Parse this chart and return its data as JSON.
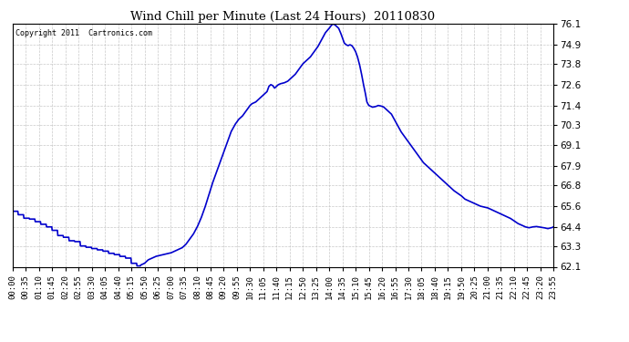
{
  "title": "Wind Chill per Minute (Last 24 Hours)  20110830",
  "copyright_text": "Copyright 2011  Cartronics.com",
  "line_color": "#0000cc",
  "background_color": "#ffffff",
  "grid_color": "#bbbbbb",
  "yticks": [
    62.1,
    63.3,
    64.4,
    65.6,
    66.8,
    67.9,
    69.1,
    70.3,
    71.4,
    72.6,
    73.8,
    74.9,
    76.1
  ],
  "ylim": [
    62.1,
    76.1
  ],
  "xtick_labels": [
    "00:00",
    "00:35",
    "01:10",
    "01:45",
    "02:20",
    "02:55",
    "03:30",
    "04:05",
    "04:40",
    "05:15",
    "05:50",
    "06:25",
    "07:00",
    "07:35",
    "08:10",
    "08:45",
    "09:20",
    "09:55",
    "10:30",
    "11:05",
    "11:40",
    "12:15",
    "12:50",
    "13:25",
    "14:00",
    "14:35",
    "15:10",
    "15:45",
    "16:20",
    "16:55",
    "17:30",
    "18:05",
    "18:40",
    "19:15",
    "19:50",
    "20:25",
    "21:00",
    "21:35",
    "22:10",
    "22:45",
    "23:20",
    "23:55"
  ],
  "control_points": [
    [
      0,
      65.3
    ],
    [
      15,
      65.1
    ],
    [
      30,
      64.9
    ],
    [
      45,
      64.85
    ],
    [
      60,
      64.7
    ],
    [
      75,
      64.55
    ],
    [
      90,
      64.4
    ],
    [
      105,
      64.2
    ],
    [
      110,
      64.1
    ],
    [
      120,
      63.9
    ],
    [
      135,
      63.8
    ],
    [
      140,
      63.75
    ],
    [
      150,
      63.6
    ],
    [
      155,
      63.65
    ],
    [
      165,
      63.55
    ],
    [
      170,
      63.5
    ],
    [
      175,
      63.35
    ],
    [
      180,
      63.3
    ],
    [
      190,
      63.25
    ],
    [
      200,
      63.2
    ],
    [
      210,
      63.15
    ],
    [
      220,
      63.1
    ],
    [
      230,
      63.05
    ],
    [
      240,
      63.0
    ],
    [
      245,
      62.95
    ],
    [
      250,
      62.9
    ],
    [
      260,
      62.85
    ],
    [
      270,
      62.8
    ],
    [
      280,
      62.75
    ],
    [
      290,
      62.65
    ],
    [
      300,
      62.6
    ],
    [
      305,
      62.55
    ],
    [
      310,
      62.5
    ],
    [
      315,
      62.3
    ],
    [
      320,
      62.25
    ],
    [
      325,
      62.2
    ],
    [
      330,
      62.15
    ],
    [
      335,
      62.13
    ],
    [
      340,
      62.2
    ],
    [
      345,
      62.25
    ],
    [
      350,
      62.3
    ],
    [
      355,
      62.4
    ],
    [
      360,
      62.5
    ],
    [
      365,
      62.55
    ],
    [
      370,
      62.6
    ],
    [
      375,
      62.65
    ],
    [
      380,
      62.7
    ],
    [
      390,
      62.75
    ],
    [
      400,
      62.8
    ],
    [
      410,
      62.85
    ],
    [
      420,
      62.9
    ],
    [
      430,
      63.0
    ],
    [
      440,
      63.1
    ],
    [
      450,
      63.2
    ],
    [
      460,
      63.4
    ],
    [
      470,
      63.7
    ],
    [
      480,
      64.0
    ],
    [
      490,
      64.4
    ],
    [
      500,
      64.9
    ],
    [
      510,
      65.5
    ],
    [
      520,
      66.2
    ],
    [
      530,
      66.9
    ],
    [
      540,
      67.5
    ],
    [
      550,
      68.1
    ],
    [
      560,
      68.7
    ],
    [
      570,
      69.3
    ],
    [
      580,
      69.9
    ],
    [
      590,
      70.3
    ],
    [
      600,
      70.6
    ],
    [
      610,
      70.8
    ],
    [
      620,
      71.1
    ],
    [
      630,
      71.4
    ],
    [
      635,
      71.5
    ],
    [
      640,
      71.55
    ],
    [
      645,
      71.6
    ],
    [
      650,
      71.7
    ],
    [
      655,
      71.8
    ],
    [
      660,
      71.9
    ],
    [
      665,
      72.0
    ],
    [
      670,
      72.1
    ],
    [
      675,
      72.2
    ],
    [
      680,
      72.5
    ],
    [
      685,
      72.6
    ],
    [
      690,
      72.55
    ],
    [
      695,
      72.4
    ],
    [
      700,
      72.5
    ],
    [
      705,
      72.6
    ],
    [
      710,
      72.65
    ],
    [
      720,
      72.7
    ],
    [
      730,
      72.8
    ],
    [
      740,
      73.0
    ],
    [
      750,
      73.2
    ],
    [
      760,
      73.5
    ],
    [
      770,
      73.8
    ],
    [
      780,
      74.0
    ],
    [
      790,
      74.2
    ],
    [
      800,
      74.5
    ],
    [
      810,
      74.8
    ],
    [
      820,
      75.2
    ],
    [
      830,
      75.6
    ],
    [
      840,
      75.85
    ],
    [
      845,
      76.0
    ],
    [
      850,
      76.1
    ],
    [
      855,
      76.05
    ],
    [
      860,
      75.95
    ],
    [
      865,
      75.85
    ],
    [
      870,
      75.6
    ],
    [
      875,
      75.3
    ],
    [
      880,
      75.0
    ],
    [
      885,
      74.9
    ],
    [
      890,
      74.85
    ],
    [
      895,
      74.9
    ],
    [
      900,
      74.85
    ],
    [
      905,
      74.7
    ],
    [
      910,
      74.5
    ],
    [
      915,
      74.2
    ],
    [
      920,
      73.8
    ],
    [
      925,
      73.3
    ],
    [
      930,
      72.7
    ],
    [
      935,
      72.2
    ],
    [
      940,
      71.6
    ],
    [
      945,
      71.4
    ],
    [
      950,
      71.35
    ],
    [
      955,
      71.3
    ],
    [
      960,
      71.32
    ],
    [
      965,
      71.35
    ],
    [
      970,
      71.4
    ],
    [
      975,
      71.38
    ],
    [
      980,
      71.35
    ],
    [
      985,
      71.3
    ],
    [
      990,
      71.2
    ],
    [
      995,
      71.1
    ],
    [
      1000,
      71.0
    ],
    [
      1005,
      70.9
    ],
    [
      1010,
      70.7
    ],
    [
      1015,
      70.5
    ],
    [
      1020,
      70.3
    ],
    [
      1025,
      70.1
    ],
    [
      1030,
      69.9
    ],
    [
      1040,
      69.6
    ],
    [
      1050,
      69.3
    ],
    [
      1060,
      69.0
    ],
    [
      1070,
      68.7
    ],
    [
      1080,
      68.4
    ],
    [
      1090,
      68.1
    ],
    [
      1100,
      67.9
    ],
    [
      1110,
      67.7
    ],
    [
      1120,
      67.5
    ],
    [
      1130,
      67.3
    ],
    [
      1140,
      67.1
    ],
    [
      1150,
      66.9
    ],
    [
      1160,
      66.7
    ],
    [
      1170,
      66.5
    ],
    [
      1180,
      66.35
    ],
    [
      1190,
      66.2
    ],
    [
      1200,
      66.0
    ],
    [
      1210,
      65.9
    ],
    [
      1220,
      65.8
    ],
    [
      1230,
      65.7
    ],
    [
      1240,
      65.6
    ],
    [
      1250,
      65.55
    ],
    [
      1260,
      65.5
    ],
    [
      1270,
      65.4
    ],
    [
      1280,
      65.3
    ],
    [
      1290,
      65.2
    ],
    [
      1300,
      65.1
    ],
    [
      1310,
      65.0
    ],
    [
      1320,
      64.9
    ],
    [
      1330,
      64.75
    ],
    [
      1340,
      64.6
    ],
    [
      1350,
      64.5
    ],
    [
      1360,
      64.4
    ],
    [
      1370,
      64.35
    ],
    [
      1380,
      64.4
    ],
    [
      1390,
      64.42
    ],
    [
      1400,
      64.38
    ],
    [
      1410,
      64.35
    ],
    [
      1420,
      64.3
    ],
    [
      1430,
      64.35
    ],
    [
      1435,
      64.4
    ]
  ]
}
